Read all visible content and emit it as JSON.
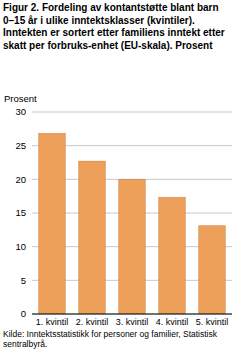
{
  "chart_data": {
    "type": "bar",
    "title": "Figur 2. Fordeling av kontantstøtte blant barn 0–15 år i ulike inntektsklasser (kvintiler). Inntekten er sortert etter familiens inntekt etter skatt per forbruks-enhet (EU-skala). Prosent",
    "y_label": "Prosent",
    "source": "Kilde: Inntektsstatistikk for personer og familier, Statistisk sentralbyrå.",
    "categories": [
      "1. kvintil",
      "2. kvintil",
      "3. kvintil",
      "4. kvintil",
      "5. kvintil"
    ],
    "values": [
      26.8,
      22.7,
      20.0,
      17.3,
      13.1
    ],
    "color": "#eda05a",
    "ylim": [
      0,
      30
    ],
    "yticks": [
      0,
      5,
      10,
      15,
      20,
      25,
      30
    ],
    "grid": true
  }
}
